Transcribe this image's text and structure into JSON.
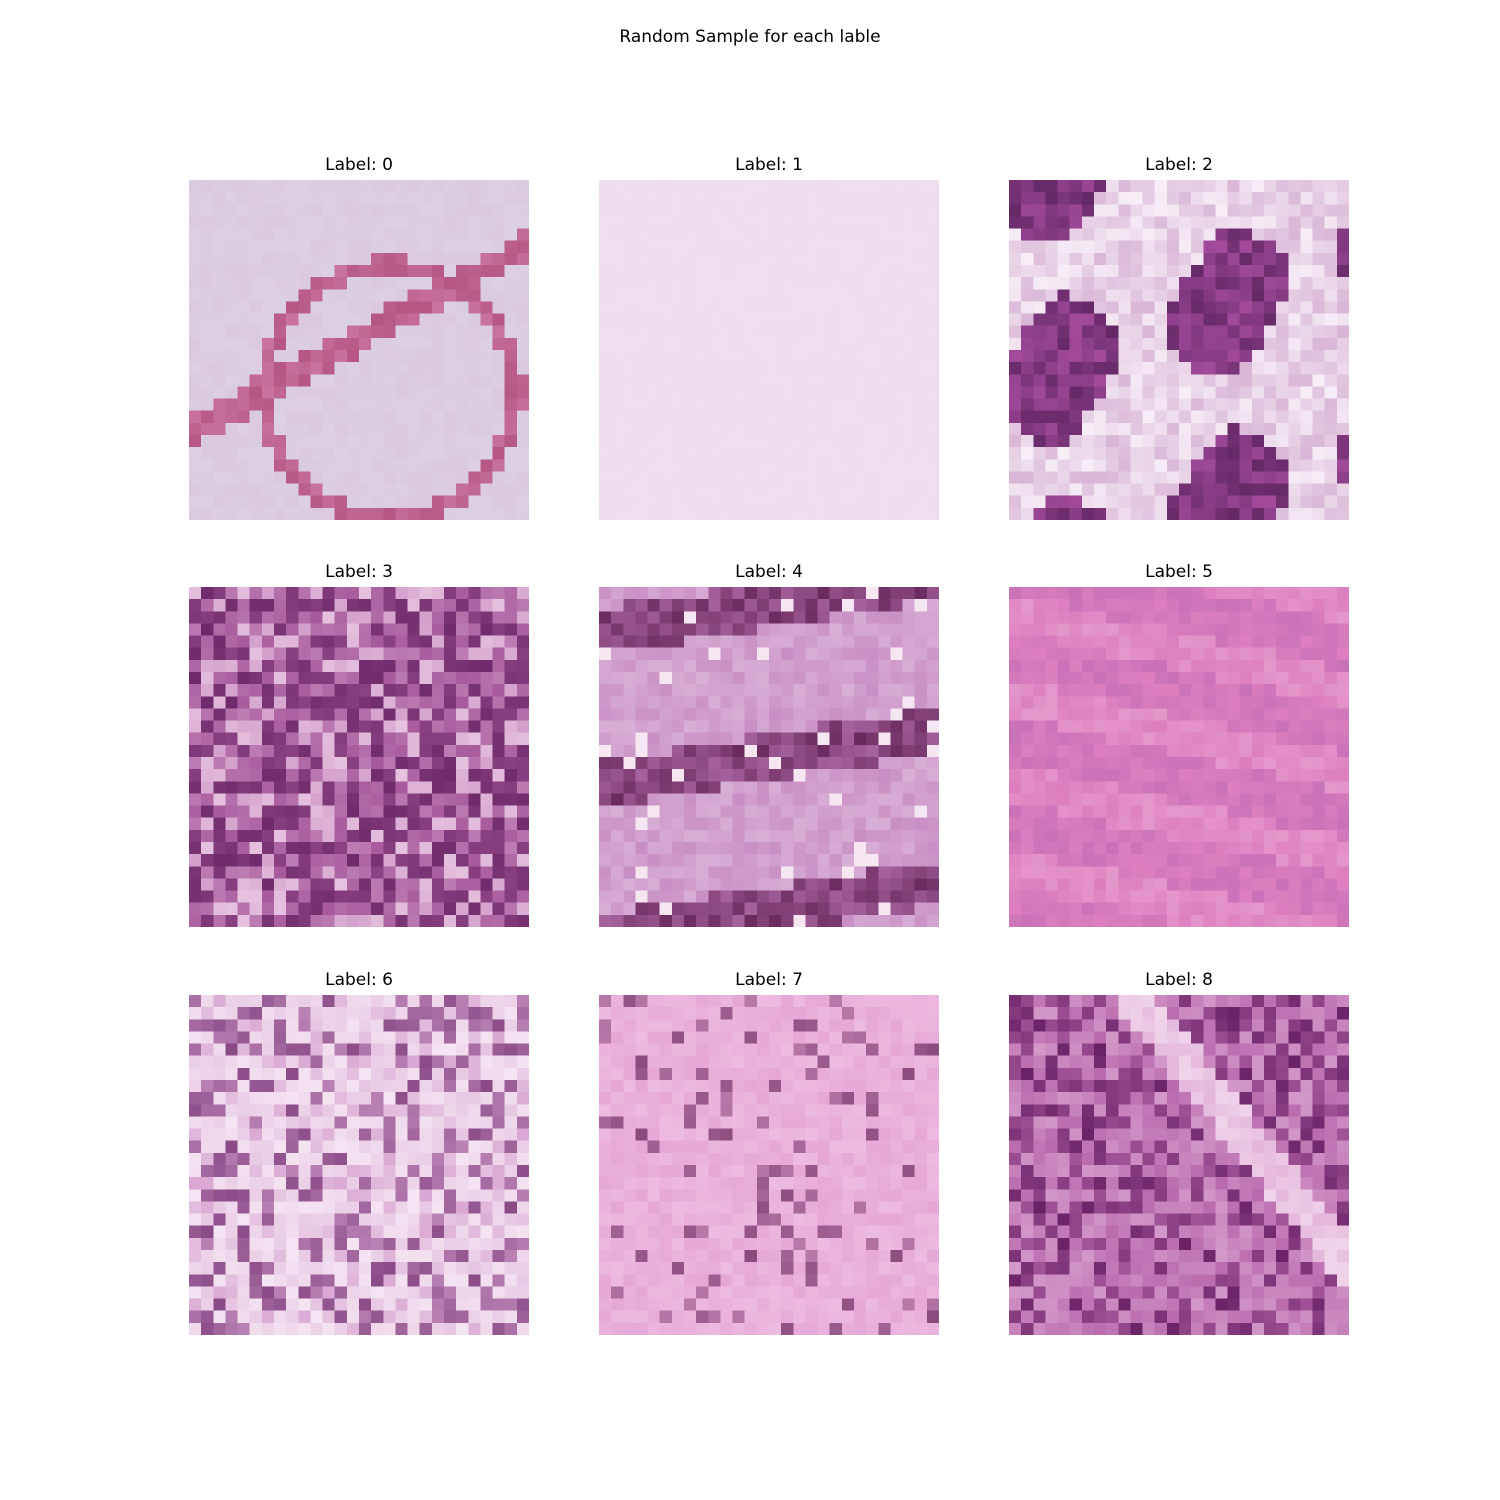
{
  "figure": {
    "title": "Random Sample for each lable"
  },
  "panels": [
    {
      "label": "Label: 0",
      "texture": "sparse-stroma",
      "base_color": "#dcd0e4",
      "accent_color": "#c8739e",
      "dark_color": "#a8436e"
    },
    {
      "label": "Label: 1",
      "texture": "blank",
      "base_color": "#efdeec",
      "accent_color": "#ecdaea",
      "dark_color": "#e6d4e6"
    },
    {
      "label": "Label: 2",
      "texture": "dense-clusters",
      "base_color": "#f7eef6",
      "accent_color": "#a24a9c",
      "dark_color": "#4a1a4e"
    },
    {
      "label": "Label: 3",
      "texture": "dense-nuclei",
      "base_color": "#a75a9b",
      "accent_color": "#d39fcb",
      "dark_color": "#6e2a6a"
    },
    {
      "label": "Label: 4",
      "texture": "fibrous",
      "base_color": "#d7aed6",
      "accent_color": "#c07ab8",
      "dark_color": "#6a2a5e"
    },
    {
      "label": "Label: 5",
      "texture": "muscle",
      "base_color": "#dd7fbf",
      "accent_color": "#e9a6d4",
      "dark_color": "#8a4aa0"
    },
    {
      "label": "Label: 6",
      "texture": "mixed",
      "base_color": "#d9a8d4",
      "accent_color": "#f5e4f2",
      "dark_color": "#8a4a86"
    },
    {
      "label": "Label: 7",
      "texture": "stroma-pink",
      "base_color": "#e6a7d6",
      "accent_color": "#f0c3e6",
      "dark_color": "#8a4a7e"
    },
    {
      "label": "Label: 8",
      "texture": "tumor",
      "base_color": "#b96aac",
      "accent_color": "#e4b6dc",
      "dark_color": "#6a2266"
    }
  ]
}
